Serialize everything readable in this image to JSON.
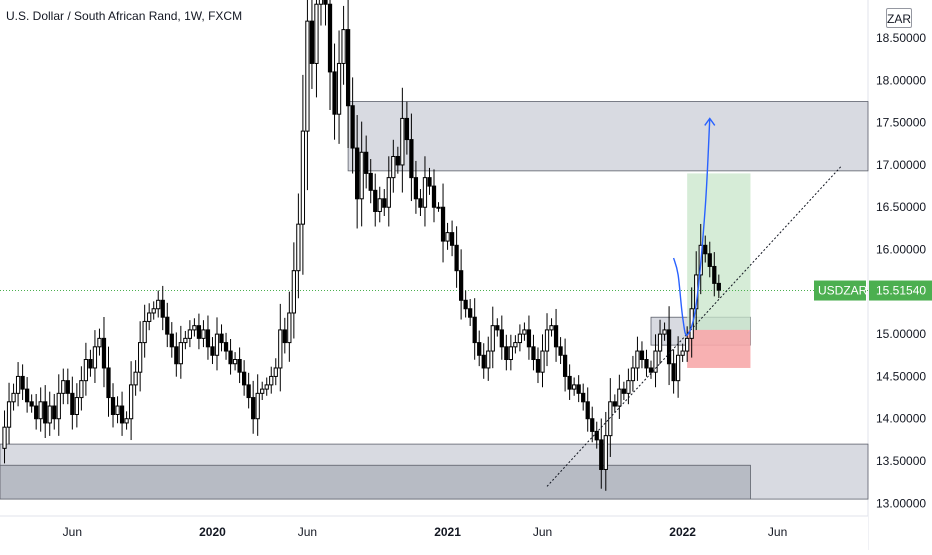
{
  "header": {
    "title": "U.S. Dollar / South African Rand, 1W, FXCM",
    "currency_badge": "ZAR"
  },
  "colors": {
    "up": "#000000",
    "down": "#000000",
    "zone_fill": "#d1d4dc",
    "zone_dark_fill": "#b2b5be",
    "target_fill": "#c8e6c9",
    "stop_fill": "#f7a8aa",
    "path_color": "#2962ff",
    "last_price_bg": "#4caf50",
    "axis_text": "#131722"
  },
  "chart_data": {
    "type": "candlestick",
    "symbol": "USDZAR",
    "interval": "1W",
    "last_price": 15.5154,
    "last_price_label": "15.51540",
    "symbol_label": "USDZAR",
    "ylim": [
      12.85,
      18.95
    ],
    "y_ticks": [
      13.0,
      13.5,
      14.0,
      14.5,
      15.0,
      15.5,
      16.0,
      16.5,
      17.0,
      17.5,
      18.0,
      18.5
    ],
    "y_tick_labels": [
      "13.00000",
      "13.50000",
      "14.00000",
      "14.50000",
      "15.00000",
      "15.50000",
      "16.00000",
      "16.50000",
      "17.00000",
      "17.50000",
      "18.00000",
      "18.50000"
    ],
    "x_range": [
      "2019-02-11",
      "2022-10-17"
    ],
    "x_ticks": [
      {
        "date": "2019-06-03",
        "label": "Jun"
      },
      {
        "date": "2020-01-06",
        "label": "2020"
      },
      {
        "date": "2020-06-01",
        "label": "Jun"
      },
      {
        "date": "2021-01-04",
        "label": "2021"
      },
      {
        "date": "2021-05-31",
        "label": "Jun"
      },
      {
        "date": "2022-01-03",
        "label": "2022"
      },
      {
        "date": "2022-05-30",
        "label": "Jun"
      }
    ],
    "closes": [
      13.65,
      13.9,
      14.2,
      14.3,
      14.5,
      14.35,
      14.2,
      14.15,
      14.0,
      14.2,
      13.95,
      14.15,
      14.0,
      14.3,
      14.45,
      14.3,
      14.05,
      14.25,
      14.45,
      14.7,
      14.6,
      14.85,
      14.95,
      14.6,
      14.25,
      14.05,
      14.15,
      13.95,
      14.0,
      14.4,
      14.55,
      14.9,
      15.15,
      15.25,
      15.3,
      15.4,
      15.2,
      15.0,
      14.85,
      14.65,
      14.9,
      14.95,
      15.05,
      15.1,
      14.95,
      15.05,
      14.85,
      14.75,
      15.0,
      14.9,
      14.8,
      14.65,
      14.7,
      14.55,
      14.4,
      14.25,
      14.0,
      14.3,
      14.35,
      14.4,
      14.5,
      14.6,
      15.05,
      14.9,
      15.25,
      15.75,
      16.3,
      17.4,
      18.7,
      18.2,
      18.9,
      19.3,
      18.9,
      18.1,
      17.6,
      18.2,
      18.6,
      17.7,
      17.2,
      16.6,
      17.15,
      16.9,
      16.7,
      16.45,
      16.6,
      16.5,
      16.85,
      17.1,
      17.0,
      17.55,
      17.3,
      16.85,
      16.6,
      16.5,
      16.85,
      16.75,
      16.5,
      16.5,
      16.1,
      16.2,
      16.05,
      15.75,
      15.4,
      15.3,
      15.2,
      14.9,
      14.75,
      14.6,
      14.8,
      15.1,
      15.05,
      14.85,
      14.7,
      14.85,
      14.9,
      15.0,
      15.05,
      14.85,
      14.7,
      14.55,
      14.8,
      15.05,
      15.1,
      14.85,
      14.75,
      14.5,
      14.35,
      14.4,
      14.3,
      14.2,
      14.0,
      13.85,
      13.75,
      13.4,
      13.8,
      14.2,
      14.15,
      14.35,
      14.3,
      14.45,
      14.6,
      14.8,
      14.7,
      14.6,
      14.55,
      14.8,
      15.0,
      15.05,
      14.65,
      14.45,
      14.75,
      14.8,
      14.95,
      15.3,
      15.7,
      16.05,
      15.95,
      15.8,
      15.6,
      15.52
    ],
    "zones": [
      {
        "name": "resistance-zone",
        "from": "2020-08-03",
        "to": "2022-10-17",
        "y1": 16.93,
        "y2": 17.75
      },
      {
        "name": "support-zone",
        "from": "2019-02-11",
        "to": "2022-10-17",
        "y1": 13.05,
        "y2": 13.7
      },
      {
        "name": "support-zone-inner",
        "from": "2019-02-11",
        "to": "2022-04-18",
        "y1": 13.05,
        "y2": 13.45
      },
      {
        "name": "entry-zone",
        "from": "2021-11-15",
        "to": "2022-04-18",
        "y1": 14.87,
        "y2": 15.2
      }
    ],
    "trendline": {
      "from": {
        "date": "2021-06-07",
        "price": 13.2
      },
      "to": {
        "date": "2022-09-05",
        "price": 16.98
      }
    },
    "long_position": {
      "from": "2022-01-10",
      "to": "2022-04-18",
      "entry": 15.05,
      "target": 16.9,
      "stop": 14.6
    },
    "projected_path": [
      {
        "date": "2021-12-20",
        "price": 15.9
      },
      {
        "date": "2021-12-27",
        "price": 15.7
      },
      {
        "date": "2022-01-03",
        "price": 15.2
      },
      {
        "date": "2022-01-10",
        "price": 14.99
      },
      {
        "date": "2022-01-24",
        "price": 15.35
      },
      {
        "date": "2022-02-07",
        "price": 16.5
      },
      {
        "date": "2022-02-14",
        "price": 17.55
      }
    ],
    "grid": false,
    "legend": "none"
  }
}
